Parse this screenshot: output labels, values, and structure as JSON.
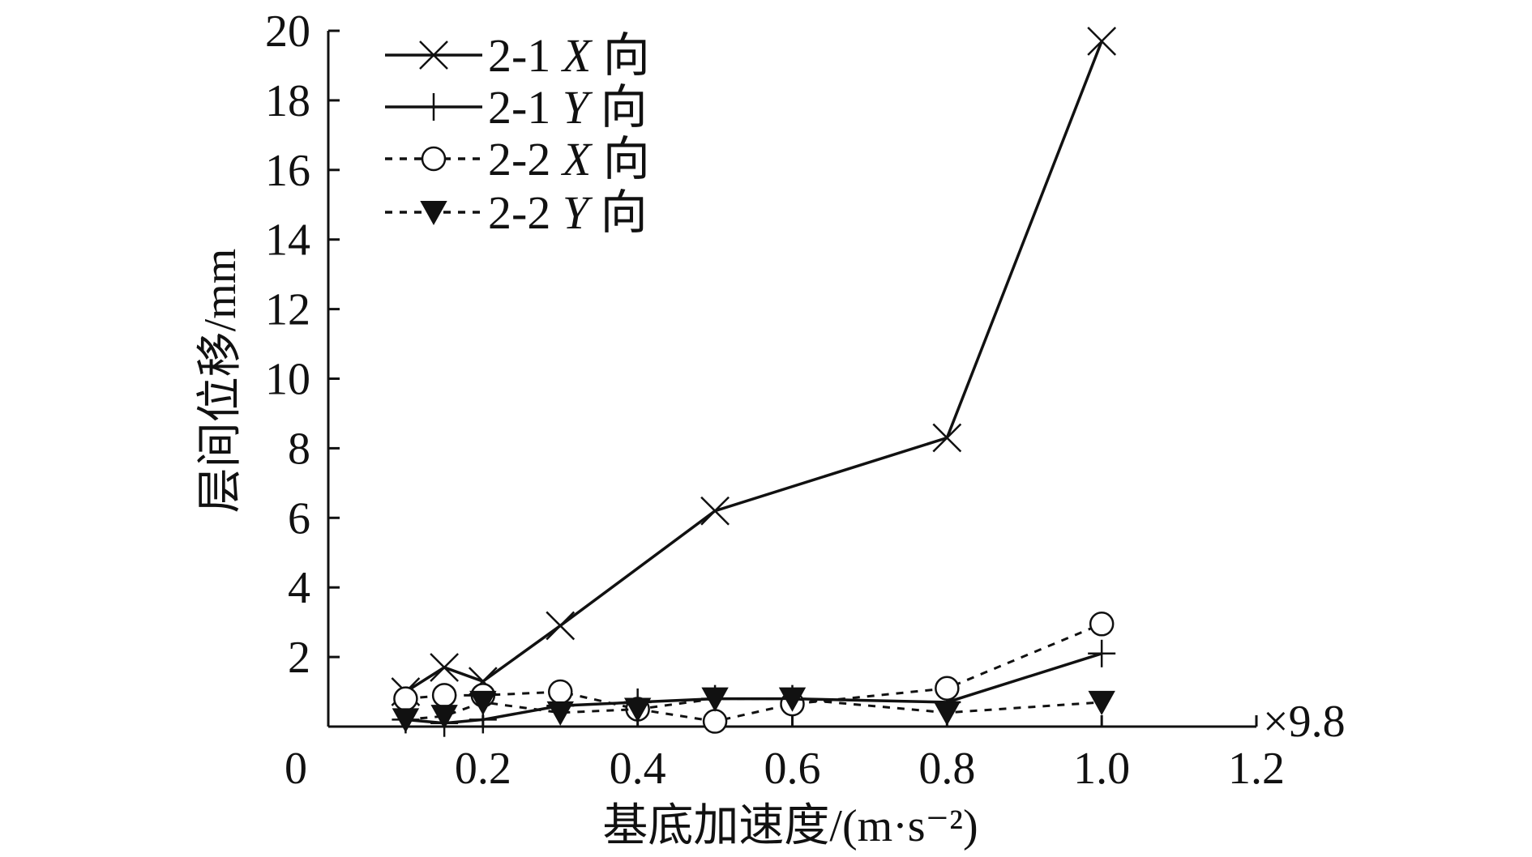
{
  "chart_data": {
    "type": "line",
    "title": "",
    "xlabel": "基底加速度/(m·s⁻²)",
    "ylabel": "层间位移/mm",
    "x_multiplier_label": "×9.8",
    "xlim": [
      0,
      1.2
    ],
    "ylim": [
      0,
      20
    ],
    "x_origin_label": "0",
    "x_ticks": [
      "0.2",
      "0.4",
      "0.6",
      "0.8",
      "1.0",
      "1.2"
    ],
    "x_tick_values": [
      0.2,
      0.4,
      0.6,
      0.8,
      1.0,
      1.2
    ],
    "y_ticks": [
      "2",
      "4",
      "6",
      "8",
      "10",
      "12",
      "14",
      "16",
      "18",
      "20"
    ],
    "y_tick_values": [
      2,
      4,
      6,
      8,
      10,
      12,
      14,
      16,
      18,
      20
    ],
    "grid": false,
    "legend_position": "top-left",
    "series": [
      {
        "name": "2-1 X 向",
        "label_prefix": "2-1 ",
        "label_axis": "X",
        "label_suffix": " 向",
        "marker": "x",
        "line": "solid",
        "color": "#111111",
        "x": [
          0.1,
          0.15,
          0.2,
          0.3,
          0.5,
          0.8,
          1.0
        ],
        "y": [
          1.0,
          1.7,
          1.3,
          2.9,
          6.2,
          8.3,
          19.7
        ]
      },
      {
        "name": "2-1 Y 向",
        "label_prefix": "2-1 ",
        "label_axis": "Y",
        "label_suffix": " 向",
        "marker": "plus",
        "line": "solid",
        "color": "#111111",
        "x": [
          0.1,
          0.15,
          0.2,
          0.3,
          0.4,
          0.5,
          0.6,
          0.8,
          1.0
        ],
        "y": [
          0.2,
          0.1,
          0.2,
          0.6,
          0.7,
          0.8,
          0.8,
          0.7,
          2.1
        ]
      },
      {
        "name": "2-2 X 向",
        "label_prefix": "2-2 ",
        "label_axis": "X",
        "label_suffix": " 向",
        "marker": "circle",
        "line": "dashed",
        "color": "#111111",
        "x": [
          0.1,
          0.15,
          0.2,
          0.3,
          0.4,
          0.5,
          0.6,
          0.8,
          1.0
        ],
        "y": [
          0.8,
          0.9,
          0.9,
          1.0,
          0.5,
          0.15,
          0.65,
          1.1,
          2.95
        ]
      },
      {
        "name": "2-2 Y 向",
        "label_prefix": "2-2 ",
        "label_axis": "Y",
        "label_suffix": " 向",
        "marker": "triangle-down",
        "line": "dashed",
        "color": "#111111",
        "x": [
          0.1,
          0.15,
          0.2,
          0.3,
          0.4,
          0.5,
          0.6,
          0.8,
          1.0
        ],
        "y": [
          0.2,
          0.3,
          0.7,
          0.4,
          0.5,
          0.8,
          0.8,
          0.4,
          0.7
        ]
      }
    ]
  }
}
